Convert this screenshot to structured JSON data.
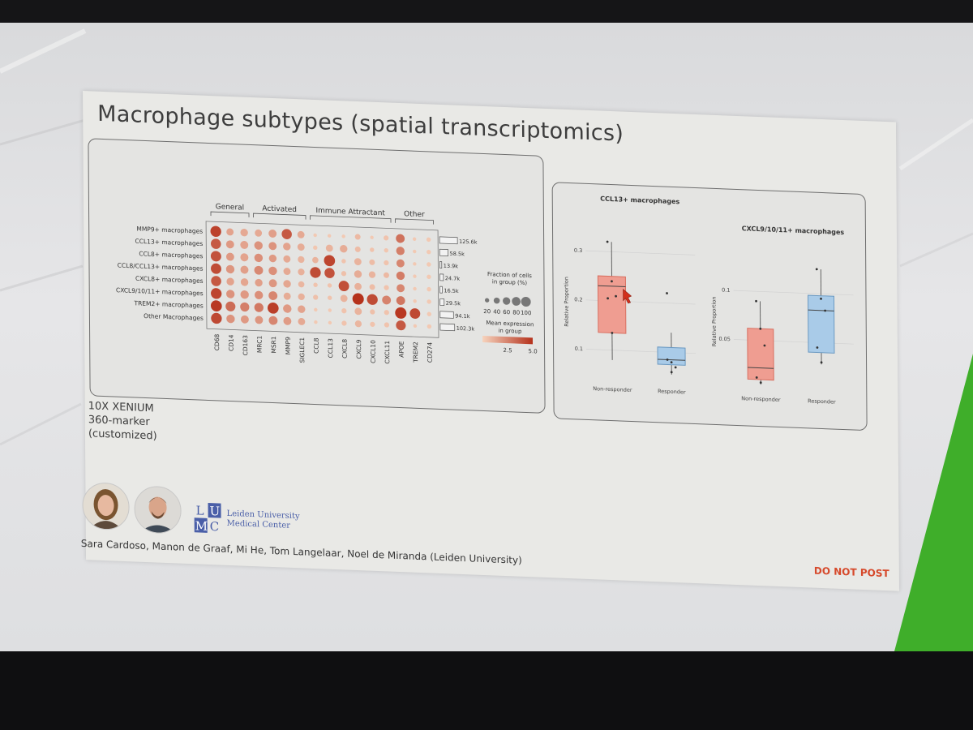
{
  "slide": {
    "title": "Macrophage subtypes (spatial transcriptomics)",
    "platform_lines": [
      "10X XENIUM",
      "360-marker",
      "(customized)"
    ],
    "authors": "Sara Cardoso, Manon de Graaf, Mi He, Tom Langelaar, Noel de Miranda (Leiden University)",
    "watermark": "DO NOT POST",
    "logo": {
      "letters": [
        "L",
        "U",
        "M",
        "C"
      ],
      "line1": "Leiden University",
      "line2": "Medical Center"
    }
  },
  "colors": {
    "dot_low": "#f6d3bd",
    "dot_high": "#b5321c",
    "box_nonresponder": "#ef9d91",
    "box_responder": "#a9cbe8",
    "accent_green": "#3fae2a",
    "warning_red": "#d6492b"
  },
  "chart_data": [
    {
      "type": "dotplot",
      "gene_groups": [
        {
          "label": "General",
          "genes": [
            "CD68",
            "CD14",
            "CD163"
          ]
        },
        {
          "label": "Activated",
          "genes": [
            "MRC1",
            "MSR1",
            "MMP9",
            "SIGLEC1"
          ]
        },
        {
          "label": "Immune Attractant",
          "genes": [
            "CCL8",
            "CCL13",
            "CXCL8",
            "CXCL9",
            "CXCL10",
            "CXCL11"
          ]
        },
        {
          "label": "Other",
          "genes": [
            "APOE",
            "TREM2",
            "CD274"
          ]
        }
      ],
      "genes": [
        "CD68",
        "CD14",
        "CD163",
        "MRC1",
        "MSR1",
        "MMP9",
        "SIGLEC1",
        "CCL8",
        "CCL13",
        "CXCL8",
        "CXCL9",
        "CXCL10",
        "CXCL11",
        "APOE",
        "TREM2",
        "CD274"
      ],
      "rows": [
        "MMP9+ macrophages",
        "CCL13+ macrophages",
        "CCL8+ macrophages",
        "CCL8/CCL13+ macrophages",
        "CXCL8+ macrophages",
        "CXCL9/10/11+ macrophages",
        "TREM2+ macrophages",
        "Other Macrophages"
      ],
      "cell_counts": [
        "125.6k",
        "58.5k",
        "13.9k",
        "24.7k",
        "16.5k",
        "29.5k",
        "94.1k",
        "102.3k"
      ],
      "cell_count_fractions": [
        1.0,
        0.47,
        0.11,
        0.2,
        0.13,
        0.23,
        0.75,
        0.81
      ],
      "fraction_pct": [
        [
          90,
          40,
          45,
          40,
          50,
          80,
          40,
          10,
          10,
          10,
          25,
          10,
          20,
          60,
          10,
          15
        ],
        [
          80,
          50,
          50,
          55,
          50,
          45,
          40,
          15,
          40,
          45,
          25,
          15,
          15,
          55,
          10,
          15
        ],
        [
          85,
          50,
          50,
          55,
          45,
          40,
          35,
          30,
          95,
          15,
          40,
          25,
          20,
          50,
          10,
          15
        ],
        [
          85,
          55,
          50,
          60,
          55,
          40,
          35,
          90,
          80,
          20,
          45,
          35,
          25,
          55,
          10,
          15
        ],
        [
          80,
          45,
          45,
          45,
          50,
          45,
          30,
          15,
          15,
          85,
          40,
          25,
          20,
          50,
          10,
          15
        ],
        [
          90,
          55,
          55,
          55,
          60,
          40,
          35,
          20,
          15,
          40,
          100,
          90,
          60,
          60,
          10,
          15
        ],
        [
          95,
          75,
          65,
          65,
          95,
          55,
          45,
          10,
          10,
          20,
          40,
          20,
          20,
          100,
          85,
          15
        ],
        [
          90,
          55,
          50,
          50,
          60,
          50,
          40,
          10,
          10,
          20,
          35,
          20,
          20,
          75,
          10,
          15
        ]
      ],
      "mean_expression": [
        [
          4.5,
          1.5,
          1.3,
          1.3,
          1.6,
          3.8,
          1.3,
          0.3,
          0.3,
          0.3,
          0.8,
          0.3,
          0.5,
          3.0,
          0.3,
          0.3
        ],
        [
          3.8,
          1.8,
          1.5,
          2.0,
          2.0,
          1.5,
          1.2,
          0.4,
          1.0,
          1.2,
          0.7,
          0.5,
          0.4,
          2.6,
          0.3,
          0.3
        ],
        [
          4.0,
          1.8,
          1.5,
          2.1,
          1.8,
          1.3,
          1.0,
          1.0,
          4.4,
          0.5,
          1.0,
          0.7,
          0.5,
          2.4,
          0.3,
          0.3
        ],
        [
          4.2,
          1.9,
          1.6,
          2.3,
          2.1,
          1.3,
          1.1,
          4.2,
          4.0,
          0.6,
          1.2,
          1.0,
          0.8,
          2.7,
          0.3,
          0.3
        ],
        [
          3.8,
          1.5,
          1.4,
          1.6,
          1.9,
          1.4,
          0.9,
          0.5,
          0.5,
          4.1,
          1.1,
          0.7,
          0.5,
          2.4,
          0.3,
          0.3
        ],
        [
          4.4,
          2.0,
          1.8,
          2.1,
          2.4,
          1.2,
          1.1,
          0.6,
          0.5,
          1.0,
          5.0,
          4.2,
          2.5,
          2.9,
          0.3,
          0.3
        ],
        [
          4.8,
          3.2,
          2.6,
          2.8,
          4.6,
          1.8,
          1.5,
          0.3,
          0.3,
          0.5,
          1.0,
          0.6,
          0.5,
          4.8,
          4.3,
          0.3
        ],
        [
          4.3,
          2.0,
          1.8,
          1.9,
          2.4,
          1.7,
          1.3,
          0.3,
          0.3,
          0.5,
          0.9,
          0.5,
          0.5,
          3.8,
          0.3,
          0.3
        ]
      ],
      "size_legend": {
        "title_lines": [
          "Fraction of cells",
          "in group (%)"
        ],
        "values": [
          20,
          40,
          60,
          80,
          100
        ]
      },
      "color_legend": {
        "title_lines": [
          "Mean expression",
          "in group"
        ],
        "ticks": [
          2.5,
          5.0
        ],
        "range": [
          0,
          5.0
        ]
      }
    },
    {
      "type": "box",
      "title": "CCL13+ macrophages",
      "ylabel": "Relative Proportion",
      "categories": [
        "Non-responder",
        "Responder"
      ],
      "yticks": [
        0.1,
        0.2,
        0.3
      ],
      "ylim": [
        0.04,
        0.35
      ],
      "boxes": [
        {
          "min": 0.08,
          "q1": 0.135,
          "median": 0.23,
          "q3": 0.25,
          "max": 0.32
        },
        {
          "min": 0.055,
          "q1": 0.075,
          "median": 0.085,
          "q3": 0.11,
          "max": 0.14
        }
      ],
      "points": [
        [
          0.32,
          0.24,
          0.21,
          0.205,
          0.135
        ],
        [
          0.22,
          0.08,
          0.07,
          0.085,
          0.06
        ]
      ]
    },
    {
      "type": "box",
      "title": "CXCL9/10/11+ macrophages",
      "ylabel": "Relative Proportion",
      "categories": [
        "Non-responder",
        "Responder"
      ],
      "yticks": [
        0.05,
        0.1
      ],
      "ylim": [
        0.0,
        0.135
      ],
      "boxes": [
        {
          "min": 0.005,
          "q1": 0.01,
          "median": 0.022,
          "q3": 0.062,
          "max": 0.09
        },
        {
          "min": 0.028,
          "q1": 0.04,
          "median": 0.083,
          "q3": 0.098,
          "max": 0.125
        }
      ],
      "points": [
        [
          0.09,
          0.062,
          0.045,
          0.012,
          0.007
        ],
        [
          0.125,
          0.095,
          0.083,
          0.045,
          0.03
        ]
      ]
    }
  ]
}
